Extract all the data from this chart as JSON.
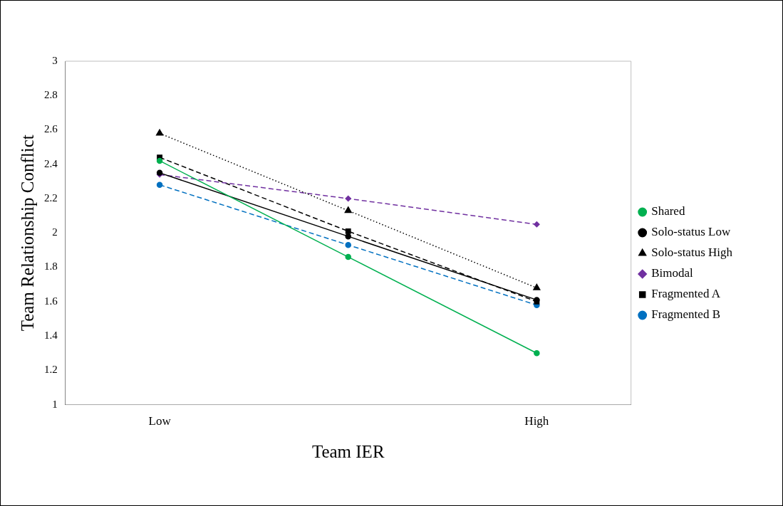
{
  "chart_data": {
    "type": "line",
    "xlabel": "Team IER",
    "ylabel": "Team Relationship Conflict",
    "categories": [
      "Low",
      null,
      "High"
    ],
    "ylim": [
      1,
      3
    ],
    "yticks": [
      1,
      1.2,
      1.4,
      1.6,
      1.8,
      2,
      2.2,
      2.4,
      2.6,
      2.8,
      3
    ],
    "grid": false,
    "legend": "right",
    "series": [
      {
        "name": "Shared",
        "color": "#00b050",
        "marker": "circle",
        "line_style": "solid",
        "values": [
          2.42,
          1.86,
          1.3
        ]
      },
      {
        "name": "Solo-status Low",
        "color": "#000000",
        "marker": "circle",
        "line_style": "solid",
        "values": [
          2.35,
          1.98,
          1.61
        ]
      },
      {
        "name": "Solo-status High",
        "color": "#000000",
        "marker": "triangle",
        "line_style": "dotted",
        "values": [
          2.58,
          2.13,
          1.68
        ]
      },
      {
        "name": "Bimodal",
        "color": "#7030a0",
        "marker": "diamond",
        "line_style": "dashed",
        "values": [
          2.34,
          2.2,
          2.05
        ]
      },
      {
        "name": "Fragmented A",
        "color": "#000000",
        "marker": "square",
        "line_style": "dashed",
        "values": [
          2.44,
          2.01,
          1.6
        ]
      },
      {
        "name": "Fragmented B",
        "color": "#0070c0",
        "marker": "circle",
        "line_style": "dashed",
        "values": [
          2.28,
          1.93,
          1.58
        ]
      }
    ]
  }
}
